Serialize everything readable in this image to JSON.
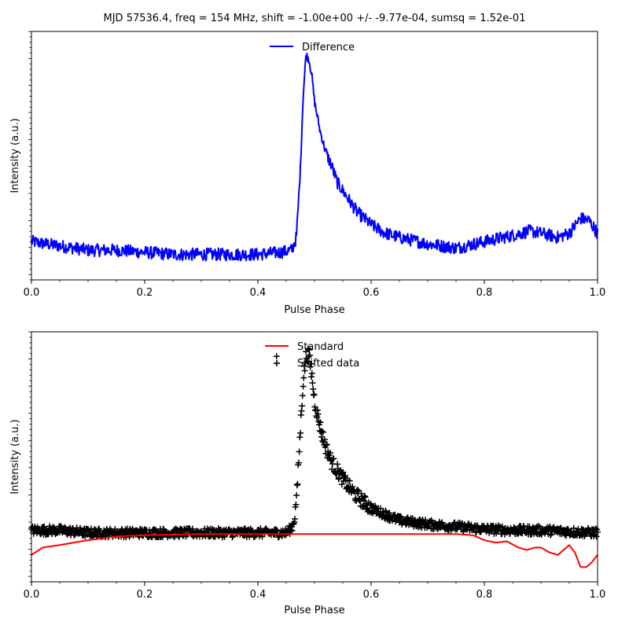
{
  "figure": {
    "title": "MJD 57536.4, freq = 154 MHz, shift = -1.00e+00 +/- -9.77e-04, sumsq = 1.52e-01"
  },
  "colors": {
    "difference": "#0000ff",
    "standard": "#ff0000",
    "shifted": "#000000"
  },
  "chart_data": [
    {
      "type": "line",
      "title": "",
      "xlabel": "Pulse Phase",
      "ylabel": "Intensity (a.u.)",
      "xlim": [
        0.0,
        1.0
      ],
      "ylim": [
        -0.12,
        1.05
      ],
      "xticks": [
        "0.0",
        "0.2",
        "0.4",
        "0.6",
        "0.8",
        "1.0"
      ],
      "legend": {
        "placement": "top-center",
        "entries": [
          "Difference"
        ]
      },
      "series": [
        {
          "name": "Difference",
          "points": [
            [
              0.0,
              0.06
            ],
            [
              0.05,
              0.04
            ],
            [
              0.1,
              0.02
            ],
            [
              0.15,
              0.02
            ],
            [
              0.2,
              0.01
            ],
            [
              0.25,
              0.0
            ],
            [
              0.3,
              0.0
            ],
            [
              0.35,
              0.0
            ],
            [
              0.4,
              0.0
            ],
            [
              0.44,
              0.01
            ],
            [
              0.46,
              0.02
            ],
            [
              0.468,
              0.08
            ],
            [
              0.475,
              0.4
            ],
            [
              0.48,
              0.75
            ],
            [
              0.485,
              0.94
            ],
            [
              0.49,
              0.92
            ],
            [
              0.495,
              0.85
            ],
            [
              0.5,
              0.72
            ],
            [
              0.51,
              0.58
            ],
            [
              0.52,
              0.48
            ],
            [
              0.53,
              0.42
            ],
            [
              0.54,
              0.34
            ],
            [
              0.55,
              0.3
            ],
            [
              0.56,
              0.26
            ],
            [
              0.575,
              0.2
            ],
            [
              0.6,
              0.14
            ],
            [
              0.625,
              0.1
            ],
            [
              0.65,
              0.08
            ],
            [
              0.7,
              0.05
            ],
            [
              0.75,
              0.03
            ],
            [
              0.8,
              0.06
            ],
            [
              0.85,
              0.09
            ],
            [
              0.88,
              0.11
            ],
            [
              0.9,
              0.1
            ],
            [
              0.93,
              0.08
            ],
            [
              0.95,
              0.1
            ],
            [
              0.97,
              0.17
            ],
            [
              0.985,
              0.16
            ],
            [
              1.0,
              0.1
            ]
          ]
        }
      ]
    },
    {
      "type": "scatter",
      "title": "",
      "xlabel": "Pulse Phase",
      "ylabel": "Intensity (a.u.)",
      "xlim": [
        0.0,
        1.0
      ],
      "ylim": [
        -0.2,
        0.82
      ],
      "xticks": [
        "0.0",
        "0.2",
        "0.4",
        "0.6",
        "0.8",
        "1.0"
      ],
      "legend": {
        "placement": "top-center",
        "entries": [
          "Standard",
          "Shifted data"
        ]
      },
      "series": [
        {
          "name": "Standard",
          "kind": "line",
          "points": [
            [
              0.0,
              -0.09
            ],
            [
              0.02,
              -0.06
            ],
            [
              0.05,
              -0.05
            ],
            [
              0.1,
              -0.03
            ],
            [
              0.15,
              -0.015
            ],
            [
              0.2,
              -0.01
            ],
            [
              0.3,
              -0.005
            ],
            [
              0.4,
              -0.005
            ],
            [
              0.6,
              -0.005
            ],
            [
              0.75,
              -0.005
            ],
            [
              0.78,
              -0.01
            ],
            [
              0.8,
              -0.03
            ],
            [
              0.82,
              -0.04
            ],
            [
              0.84,
              -0.035
            ],
            [
              0.86,
              -0.06
            ],
            [
              0.875,
              -0.07
            ],
            [
              0.89,
              -0.06
            ],
            [
              0.9,
              -0.06
            ],
            [
              0.915,
              -0.08
            ],
            [
              0.93,
              -0.09
            ],
            [
              0.95,
              -0.05
            ],
            [
              0.96,
              -0.08
            ],
            [
              0.97,
              -0.14
            ],
            [
              0.98,
              -0.14
            ],
            [
              0.99,
              -0.12
            ],
            [
              1.0,
              -0.09
            ]
          ]
        },
        {
          "name": "Shifted data",
          "kind": "markers",
          "marker": "+",
          "envelope": [
            [
              0.0,
              0.01
            ],
            [
              0.05,
              0.01
            ],
            [
              0.1,
              0.0
            ],
            [
              0.2,
              0.0
            ],
            [
              0.3,
              0.0
            ],
            [
              0.4,
              0.0
            ],
            [
              0.45,
              0.0
            ],
            [
              0.46,
              0.02
            ],
            [
              0.465,
              0.06
            ],
            [
              0.47,
              0.2
            ],
            [
              0.475,
              0.42
            ],
            [
              0.48,
              0.62
            ],
            [
              0.485,
              0.72
            ],
            [
              0.49,
              0.73
            ],
            [
              0.495,
              0.65
            ],
            [
              0.5,
              0.54
            ],
            [
              0.51,
              0.43
            ],
            [
              0.52,
              0.35
            ],
            [
              0.53,
              0.29
            ],
            [
              0.55,
              0.22
            ],
            [
              0.57,
              0.16
            ],
            [
              0.6,
              0.1
            ],
            [
              0.65,
              0.05
            ],
            [
              0.7,
              0.035
            ],
            [
              0.75,
              0.025
            ],
            [
              0.8,
              0.015
            ],
            [
              0.85,
              0.01
            ],
            [
              0.9,
              0.01
            ],
            [
              0.95,
              0.005
            ],
            [
              1.0,
              0.0
            ]
          ],
          "noise": 0.018,
          "point_count": 1024
        }
      ]
    }
  ]
}
